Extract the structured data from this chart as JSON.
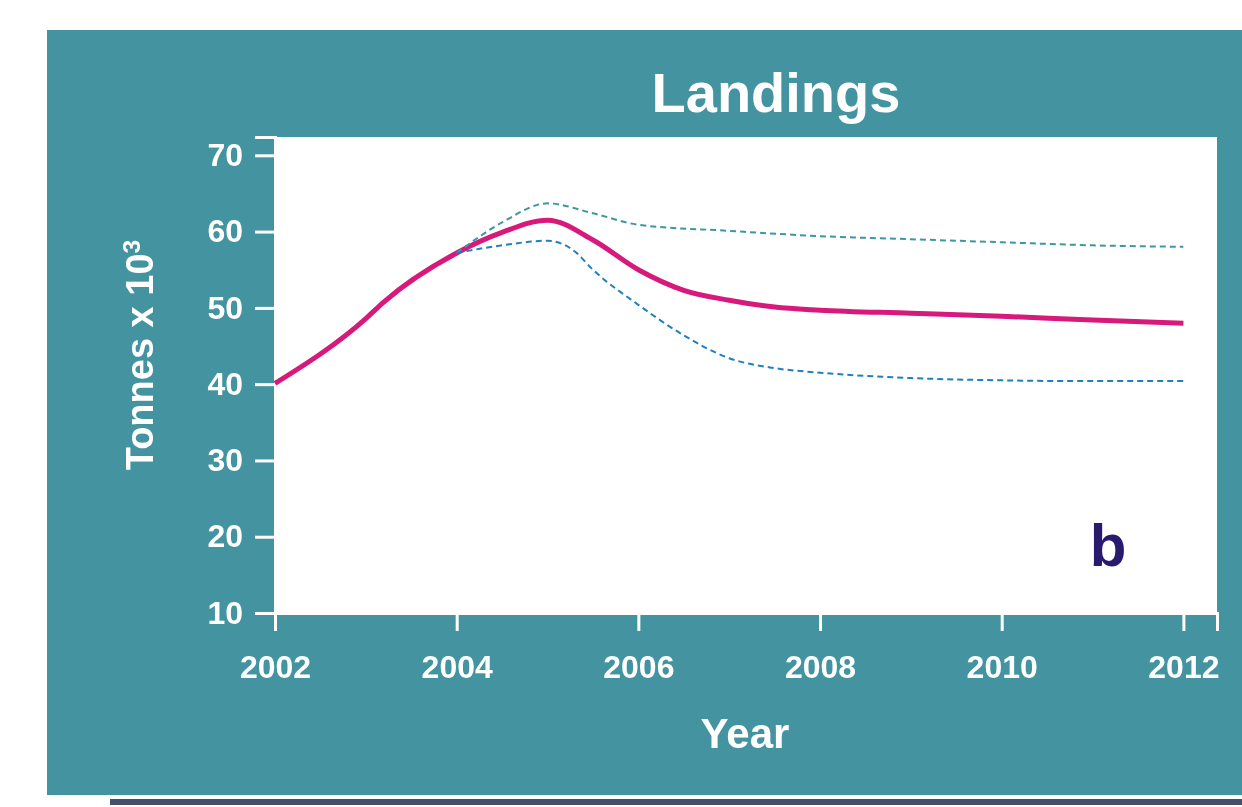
{
  "chart_data": {
    "type": "line",
    "title": "Landings",
    "xlabel": "Year",
    "ylabel": "Tonnes x 10$^{3}$",
    "xlim": [
      2002,
      2012.37
    ],
    "xticks": [
      2002,
      2004,
      2006,
      2008,
      2010,
      2012
    ],
    "ylim": [
      10,
      72.4
    ],
    "yticks": [
      10,
      20,
      30,
      40,
      50,
      60,
      70
    ],
    "grid": false,
    "annotations": [
      "b"
    ],
    "series": [
      {
        "color": "#d6197a",
        "line_style": "solid",
        "x": [
          2002,
          2003,
          2003.2,
          2004,
          2004.5,
          2005,
          2005.5,
          2006,
          2006.5,
          2007,
          2007.5,
          2008,
          2009,
          2010,
          2011,
          2012
        ],
        "values": [
          40.1,
          48.6,
          50.8,
          57.2,
          59.9,
          61.5,
          58.9,
          55,
          52.3,
          51,
          50.1,
          49.7,
          49.3,
          48.9,
          48.4,
          48
        ]
      },
      {
        "color": "#3a97a3",
        "line_style": "dashed",
        "x": [
          2004,
          2004.5,
          2005,
          2005.5,
          2006,
          2007,
          2008,
          2009,
          2010,
          2011,
          2012
        ],
        "values": [
          57.2,
          61.2,
          63.7,
          62.4,
          60.9,
          60.1,
          59.4,
          59,
          58.6,
          58.2,
          58
        ]
      },
      {
        "color": "#1f80c0",
        "line_style": "dashed",
        "x": [
          2004,
          2004.5,
          2005,
          2005.3,
          2005.5,
          2006,
          2006.5,
          2007,
          2007.5,
          2008,
          2009,
          2010,
          2011,
          2012
        ],
        "values": [
          57.2,
          58.2,
          58.8,
          57.4,
          55,
          50.4,
          46.4,
          43.4,
          42.1,
          41.5,
          40.8,
          40.5,
          40.4,
          40.4
        ]
      }
    ]
  }
}
